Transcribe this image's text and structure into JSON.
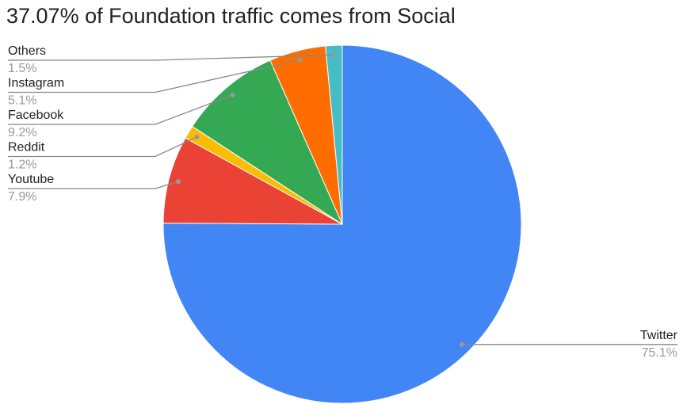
{
  "chart_data": {
    "type": "pie",
    "title": "37.07% of Foundation traffic comes from Social",
    "categories": [
      "Twitter",
      "Youtube",
      "Reddit",
      "Facebook",
      "Instagram",
      "Others"
    ],
    "values": [
      75.1,
      7.9,
      1.2,
      9.2,
      5.1,
      1.5
    ],
    "value_labels": [
      "75.1%",
      "7.9%",
      "1.2%",
      "9.2%",
      "5.1%",
      "1.5%"
    ],
    "colors": [
      "#4285f4",
      "#ea4335",
      "#fbbc04",
      "#34a853",
      "#ff6d01",
      "#46bdc6"
    ]
  }
}
